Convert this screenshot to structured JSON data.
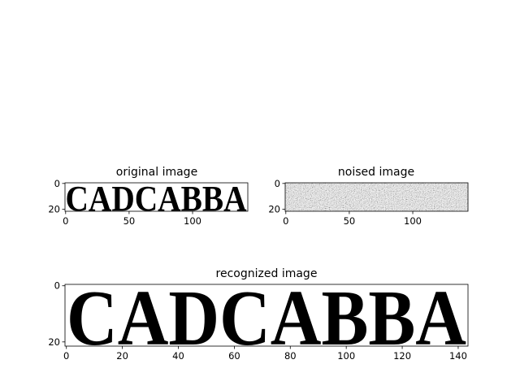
{
  "chart_data": [
    {
      "type": "image",
      "title": "original image",
      "image_content": "CADCABBA",
      "colormap": "gray",
      "pixel_grid": {
        "width": 144,
        "height": 22
      },
      "xticks": [
        0,
        50,
        100
      ],
      "yticks": [
        0,
        20
      ]
    },
    {
      "type": "image",
      "title": "noised image",
      "image_content": "random noise",
      "colormap": "gray",
      "pixel_grid": {
        "width": 144,
        "height": 22
      },
      "xticks": [
        0,
        50,
        100
      ],
      "yticks": [
        0,
        20
      ]
    },
    {
      "type": "image",
      "title": "recognized image",
      "image_content": "CADCABBA",
      "colormap": "gray",
      "pixel_grid": {
        "width": 144,
        "height": 22
      },
      "xticks": [
        0,
        20,
        40,
        60,
        80,
        100,
        120,
        140
      ],
      "yticks": [
        0,
        20
      ]
    }
  ]
}
